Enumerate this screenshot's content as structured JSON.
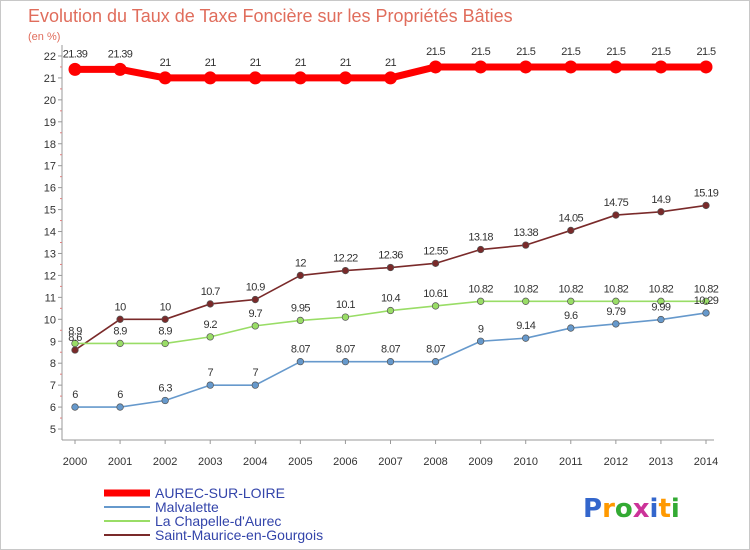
{
  "chart_data": {
    "type": "line",
    "title": "Evolution du Taux de Taxe Foncière sur les Propriétés Bâties",
    "unit_label": "(en %)",
    "x": [
      "2000",
      "2001",
      "2002",
      "2003",
      "2004",
      "2005",
      "2006",
      "2007",
      "2008",
      "2009",
      "2010",
      "2011",
      "2012",
      "2013",
      "2014"
    ],
    "ylim": [
      4.5,
      22.5
    ],
    "yticks": [
      5,
      6,
      7,
      8,
      9,
      10,
      11,
      12,
      13,
      14,
      15,
      16,
      17,
      18,
      19,
      20,
      21,
      22
    ],
    "grid": false,
    "legend_position": "bottom-left",
    "series": [
      {
        "name": "AUREC-SUR-LOIRE",
        "color": "#ff0000",
        "values": [
          21.39,
          21.39,
          21,
          21,
          21,
          21,
          21,
          21,
          21.5,
          21.5,
          21.5,
          21.5,
          21.5,
          21.5,
          21.5
        ],
        "labels": [
          "21.39",
          "21.39",
          "21",
          "21",
          "21",
          "21",
          "21",
          "21",
          "21.5",
          "21.5",
          "21.5",
          "21.5",
          "21.5",
          "21.5",
          "21.5"
        ]
      },
      {
        "name": "Malvalette",
        "color": "#6699cc",
        "values": [
          6,
          6,
          6.3,
          7,
          7,
          8.07,
          8.07,
          8.07,
          8.07,
          9,
          9.14,
          9.6,
          9.79,
          9.99,
          10.29
        ],
        "labels": [
          "6",
          "6",
          "6.3",
          "7",
          "7",
          "8.07",
          "8.07",
          "8.07",
          "8.07",
          "9",
          "9.14",
          "9.6",
          "9.79",
          "9.99",
          "10.29"
        ]
      },
      {
        "name": "La Chapelle-d'Aurec",
        "color": "#99dd66",
        "values": [
          8.9,
          8.9,
          8.9,
          9.2,
          9.7,
          9.95,
          10.1,
          10.4,
          10.61,
          10.82,
          10.82,
          10.82,
          10.82,
          10.82,
          10.82
        ],
        "labels": [
          "8.9",
          "8.9",
          "8.9",
          "9.2",
          "9.7",
          "9.95",
          "10.1",
          "10.4",
          "10.61",
          "10.82",
          "10.82",
          "10.82",
          "10.82",
          "10.82",
          "10.82"
        ]
      },
      {
        "name": "Saint-Maurice-en-Gourgois",
        "color": "#7a2a2a",
        "values": [
          8.6,
          10,
          10,
          10.7,
          10.9,
          12,
          12.22,
          12.36,
          12.55,
          13.18,
          13.38,
          14.05,
          14.75,
          14.9,
          15.19
        ],
        "labels": [
          "8.6",
          "10",
          "10",
          "10.7",
          "10.9",
          "12",
          "12.22",
          "12.36",
          "12.55",
          "13.18",
          "13.38",
          "14.05",
          "14.75",
          "14.9",
          "15.19"
        ]
      }
    ]
  },
  "brand": {
    "text": "Proxiti",
    "letters": [
      "P",
      "r",
      "o",
      "x",
      "i",
      "t",
      "i"
    ],
    "colors": [
      "#3366cc",
      "#ff9900",
      "#33aa33",
      "#cc3399",
      "#3366cc",
      "#ff9900",
      "#33aa33"
    ]
  }
}
